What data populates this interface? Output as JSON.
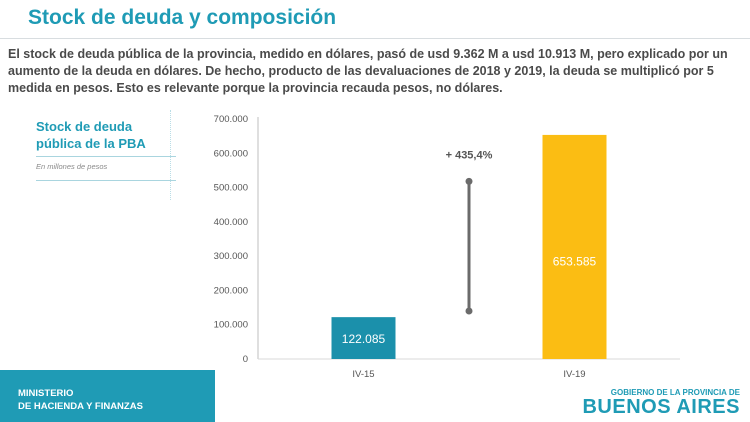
{
  "header": {
    "title": "Stock de deuda y composición"
  },
  "intro": {
    "text": "El stock de deuda pública de la provincia, medido en dólares, pasó de usd 9.362 M a usd 10.913 M, pero explicado por un aumento de la deuda en dólares. De hecho, producto de las devaluaciones de 2018 y 2019, la deuda se multiplicó por 5 medida en pesos. Esto es relevante porque la provincia recauda pesos, no dólares."
  },
  "side": {
    "title": "Stock de deuda pública de la PBA",
    "note": "En millones de pesos"
  },
  "chart_data": {
    "type": "bar",
    "categories": [
      "IV-15",
      "IV-19"
    ],
    "values": [
      122085,
      653585
    ],
    "value_labels": [
      "122.085",
      "653.585"
    ],
    "bar_colors": [
      "#1b90ab",
      "#fbbd13"
    ],
    "yticks": [
      "0",
      "100.000",
      "200.000",
      "300.000",
      "400.000",
      "500.000",
      "600.000",
      "700.000"
    ],
    "ylim": [
      0,
      700000
    ],
    "annotation": "+ 435,4%",
    "annotation_range": [
      140000,
      518000
    ],
    "title": "",
    "xlabel": "",
    "ylabel": ""
  },
  "footer": {
    "ministry_line1": "MINISTERIO",
    "ministry_line2": "DE HACIENDA Y FINANZAS",
    "brand_top": "GOBIERNO DE LA PROVINCIA DE",
    "brand_main": "BUENOS AIRES"
  },
  "colors": {
    "accent": "#1f9bb5",
    "bar1": "#1b90ab",
    "bar2": "#fbbd13"
  }
}
